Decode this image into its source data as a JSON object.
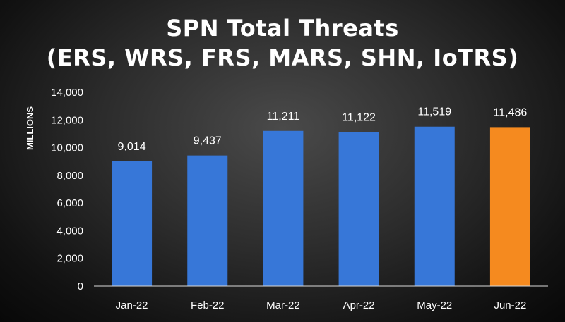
{
  "chart_data": {
    "type": "bar",
    "title_lines": [
      "SPN Total Threats",
      "(ERS, WRS, FRS, MARS, SHN, IoTRS)"
    ],
    "title": "SPN Total Threats (ERS, WRS, FRS, MARS, SHN, IoTRS)",
    "xlabel": "",
    "ylabel": "MILLIONS",
    "categories": [
      "Jan-22",
      "Feb-22",
      "Mar-22",
      "Apr-22",
      "May-22",
      "Jun-22"
    ],
    "values": [
      9014,
      9437,
      11211,
      11122,
      11519,
      11486
    ],
    "value_labels": [
      "9,014",
      "9,437",
      "11,211",
      "11,122",
      "11,519",
      "11,486"
    ],
    "ylim": [
      0,
      14000
    ],
    "y_ticks": [
      0,
      2000,
      4000,
      6000,
      8000,
      10000,
      12000,
      14000
    ],
    "y_tick_labels": [
      "0",
      "2,000",
      "4,000",
      "6,000",
      "8,000",
      "10,000",
      "12,000",
      "14,000"
    ],
    "grid": false,
    "legend": "none",
    "colors": {
      "bar": "#3777D8",
      "highlight_bar": "#F58A1F",
      "text": "#FFFFFF"
    },
    "highlight_index": 5
  }
}
